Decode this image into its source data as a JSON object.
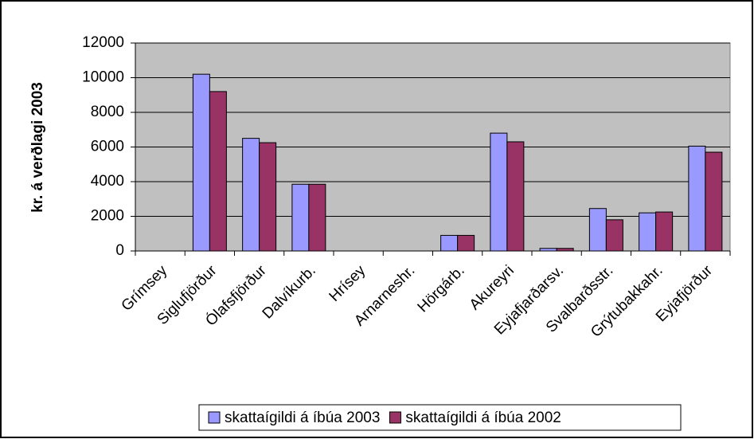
{
  "chart_data": {
    "type": "bar",
    "y_label": "kr. á verðlagi 2003",
    "categories": [
      "Grímsey",
      "Siglufjörður",
      "Ólafsfjörður",
      "Dalvíkurb.",
      "Hrísey",
      "Arnarneshr.",
      "Hörgárb.",
      "Akureyri",
      "Eyjafjarðarsv.",
      "Svalbarðsstr.",
      "Grýtubakkahr.",
      "Eyjafjörður"
    ],
    "series": [
      {
        "name": "skattaígildi á íbúa 2003",
        "color": "#9999ff",
        "values": [
          0,
          10200,
          6500,
          3850,
          0,
          0,
          900,
          6800,
          150,
          2450,
          2200,
          6050
        ]
      },
      {
        "name": "skattaígildi á íbúa 2002",
        "color": "#993366",
        "values": [
          0,
          9200,
          6250,
          3850,
          0,
          0,
          900,
          6300,
          150,
          1800,
          2250,
          5700
        ]
      }
    ],
    "ylim": [
      0,
      12000
    ],
    "yticks": [
      0,
      2000,
      4000,
      6000,
      8000,
      10000,
      12000
    ],
    "grid": true,
    "legend": "bottom"
  }
}
